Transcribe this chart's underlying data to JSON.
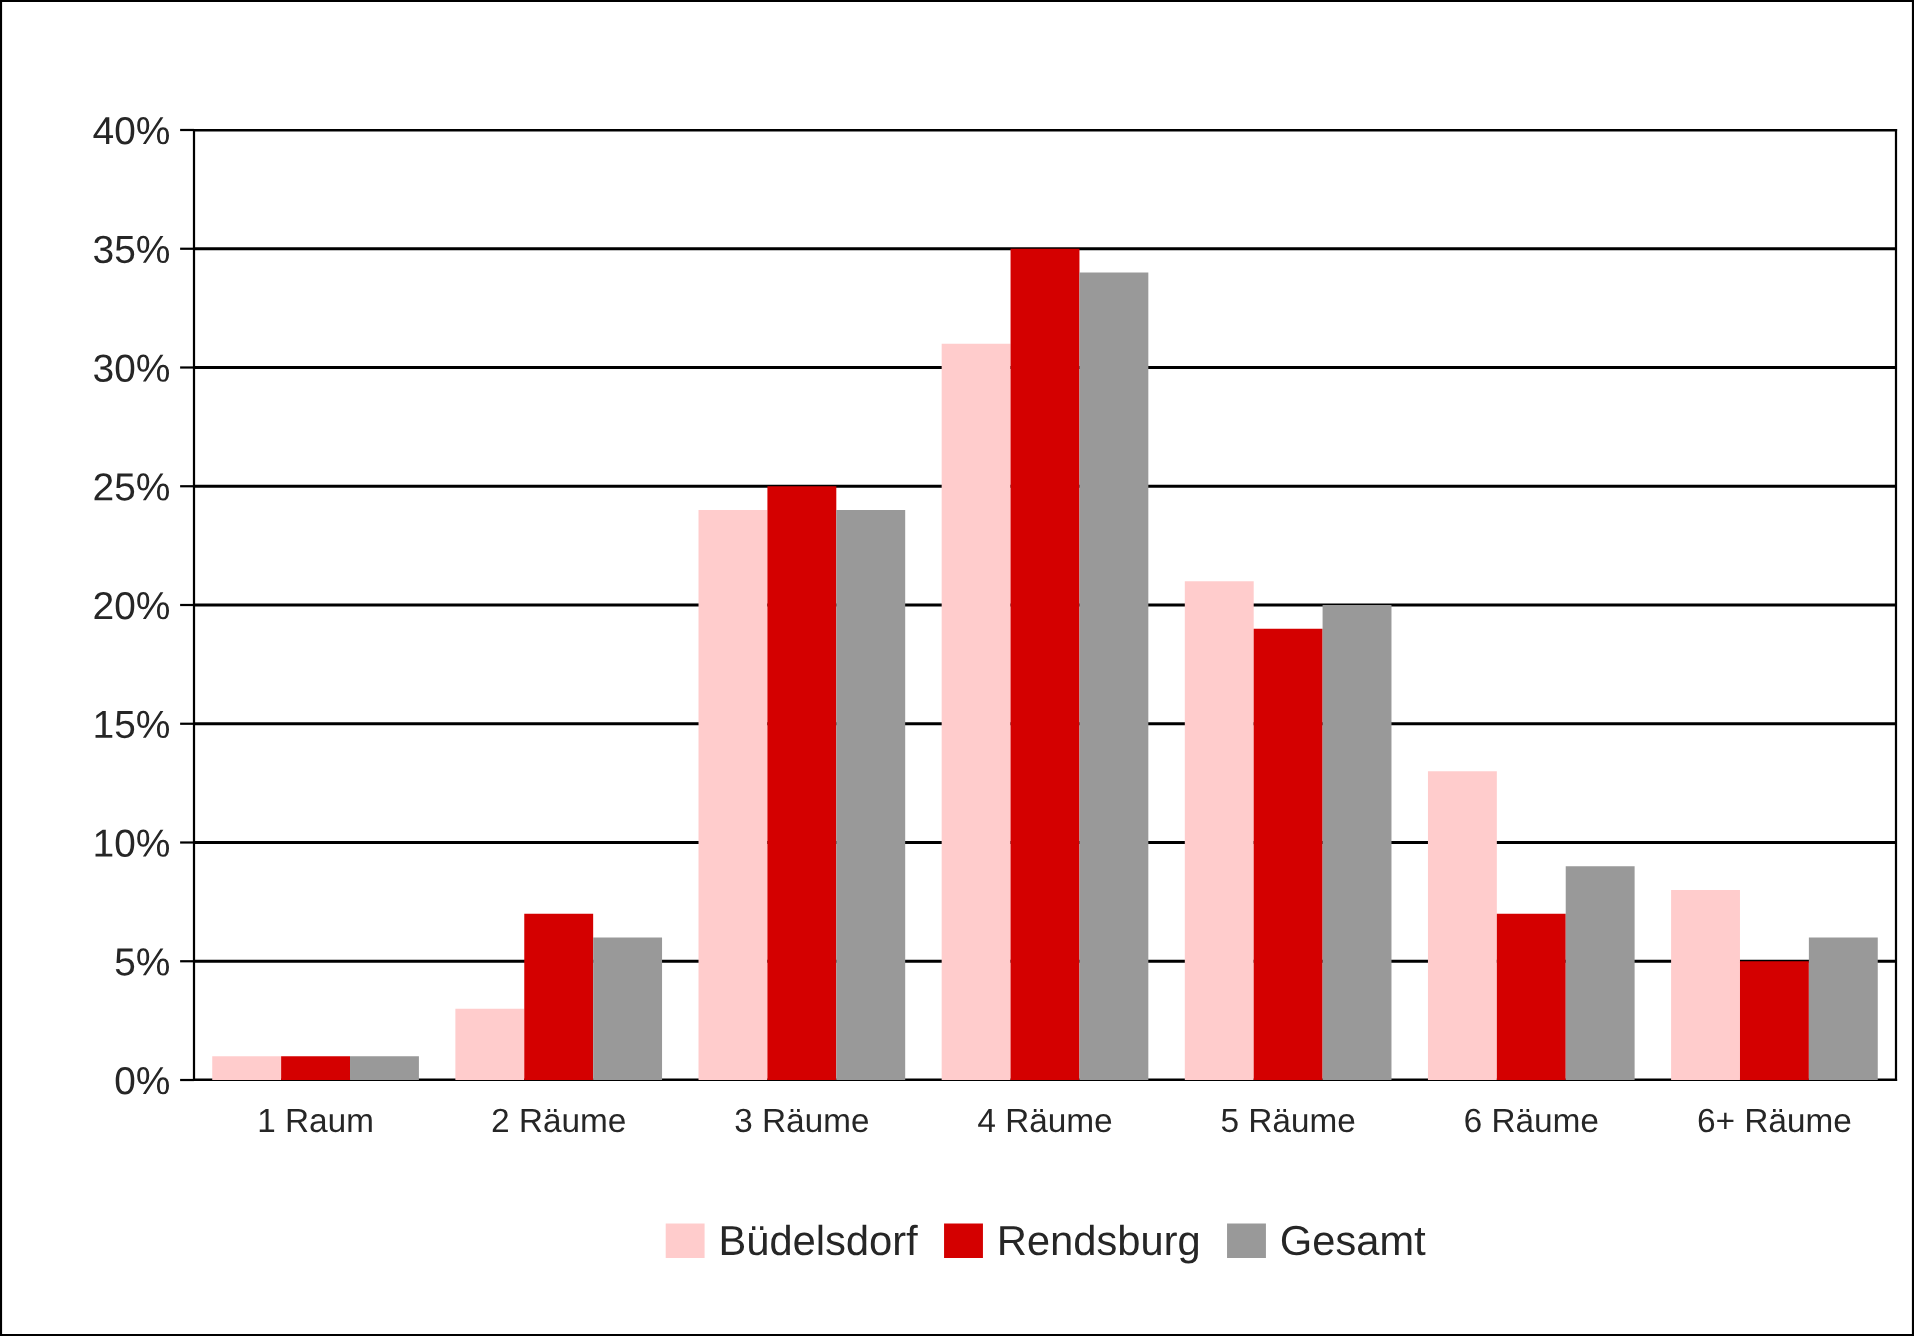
{
  "chart_data": {
    "type": "bar",
    "categories": [
      "1 Raum",
      "2 Räume",
      "3 Räume",
      "4 Räume",
      "5 Räume",
      "6 Räume",
      "6+ Räume"
    ],
    "series": [
      {
        "name": "Büdelsdorf",
        "color": "#ffcccc",
        "values": [
          1,
          3,
          24,
          31,
          21,
          13,
          8
        ]
      },
      {
        "name": "Rendsburg",
        "color": "#d40000",
        "values": [
          1,
          7,
          25,
          35,
          19,
          7,
          5
        ]
      },
      {
        "name": "Gesamt",
        "color": "#999999",
        "values": [
          1,
          6,
          24,
          34,
          20,
          9,
          6
        ]
      }
    ],
    "ylim": [
      0,
      40
    ],
    "yticks": [
      {
        "value": 0,
        "label": "0%"
      },
      {
        "value": 5,
        "label": "5%"
      },
      {
        "value": 10,
        "label": "10%"
      },
      {
        "value": 15,
        "label": "15%"
      },
      {
        "value": 20,
        "label": "20%"
      },
      {
        "value": 25,
        "label": "25%"
      },
      {
        "value": 30,
        "label": "30%"
      },
      {
        "value": 35,
        "label": "35%"
      },
      {
        "value": 40,
        "label": "40%"
      }
    ],
    "grid": "y",
    "legend": "bottom"
  }
}
